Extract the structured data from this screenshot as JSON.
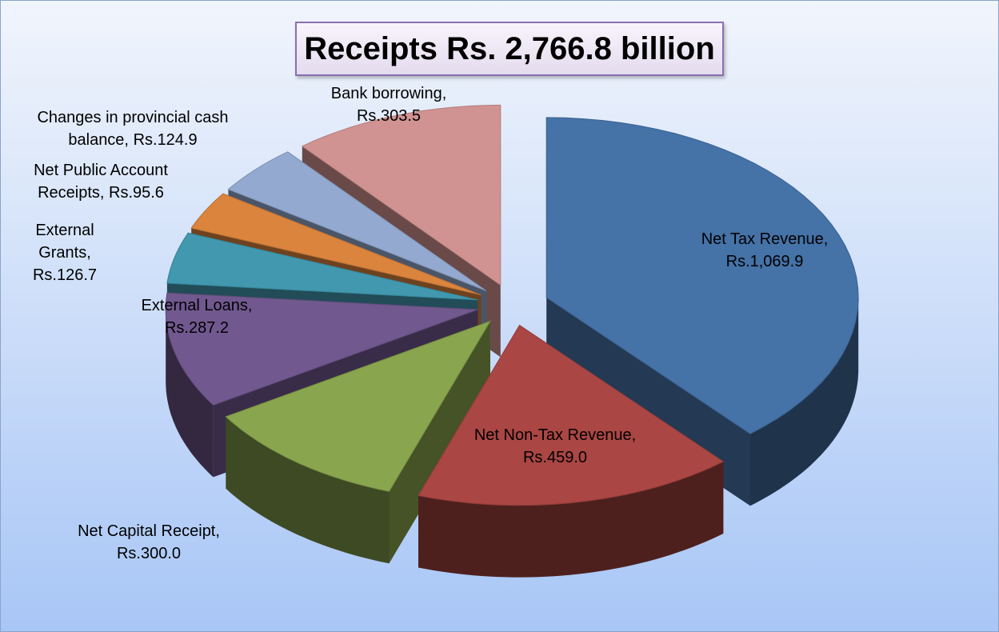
{
  "chart_data": {
    "type": "pie3d",
    "title": "Receipts Rs. 2,766.8 billion",
    "categories": [
      "Net Tax Revenue,",
      "Net Non-Tax Revenue,",
      "Net Capital Receipt,",
      "External Loans,",
      "External Grants,",
      "Net Public Account Receipts,",
      "Changes in provincial cash balance,",
      "Bank borrowing,"
    ],
    "values": [
      1069.9,
      459.0,
      300.0,
      287.2,
      126.7,
      95.6,
      124.9,
      303.5
    ],
    "value_labels": [
      "Rs.1,069.9",
      "Rs.459.0",
      "Rs.300.0",
      "Rs.287.2",
      "Rs.126.7",
      "Rs.95.6",
      "Rs.124.9",
      "Rs.303.5"
    ],
    "colors": [
      "#4572a7",
      "#aa4643",
      "#89a54e",
      "#71588f",
      "#4198af",
      "#db843d",
      "#93a9cf",
      "#d19392"
    ]
  }
}
